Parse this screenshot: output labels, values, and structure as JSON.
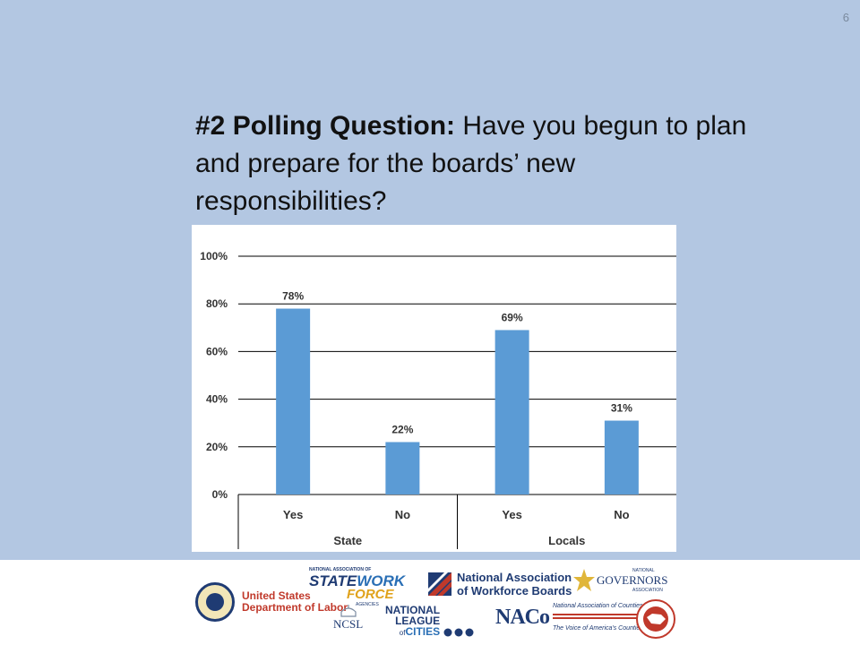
{
  "slide": {
    "number": "6"
  },
  "question": {
    "lead": "#2 Polling Question:",
    "text": " Have you begun to plan and prepare for the boards’ new responsibilities?"
  },
  "chart_data": {
    "type": "bar",
    "groups": [
      {
        "label": "State",
        "categories": [
          "Yes",
          "No"
        ],
        "values": [
          78,
          22
        ],
        "value_labels": [
          "78%",
          "22%"
        ]
      },
      {
        "label": "Locals",
        "categories": [
          "Yes",
          "No"
        ],
        "values": [
          69,
          31
        ],
        "value_labels": [
          "69%",
          "31%"
        ]
      }
    ],
    "ylim": [
      0,
      100
    ],
    "yticks": [
      0,
      20,
      40,
      60,
      80,
      100
    ],
    "ytick_labels": [
      "0%",
      "20%",
      "40%",
      "60%",
      "80%",
      "100%"
    ],
    "grid": true,
    "bar_color": "#5b9bd5"
  },
  "footer": {
    "dol": {
      "line1": "United States",
      "line2": "Department of Labor"
    },
    "naswa": {
      "small": "NATIONAL ASSOCIATION OF",
      "word1": "STATE",
      "word2": "WORK",
      "word3": "FORCE",
      "sub": "AGENCIES"
    },
    "nawb": {
      "line1": "National Association",
      "line2": "of Workforce Boards"
    },
    "nga": {
      "small": "NATIONAL",
      "main": "GOVERNORS",
      "sub": "ASSOCIATION"
    },
    "ncsl": {
      "main": "NCSL"
    },
    "nlc": {
      "line1": "NATIONAL",
      "line2": "LEAGUE",
      "line3a": "of",
      "line3b": "CITIES"
    },
    "naco": {
      "main": "NACo",
      "line1": "National Association of Counties",
      "line2": "The Voice of America's Counties"
    }
  }
}
